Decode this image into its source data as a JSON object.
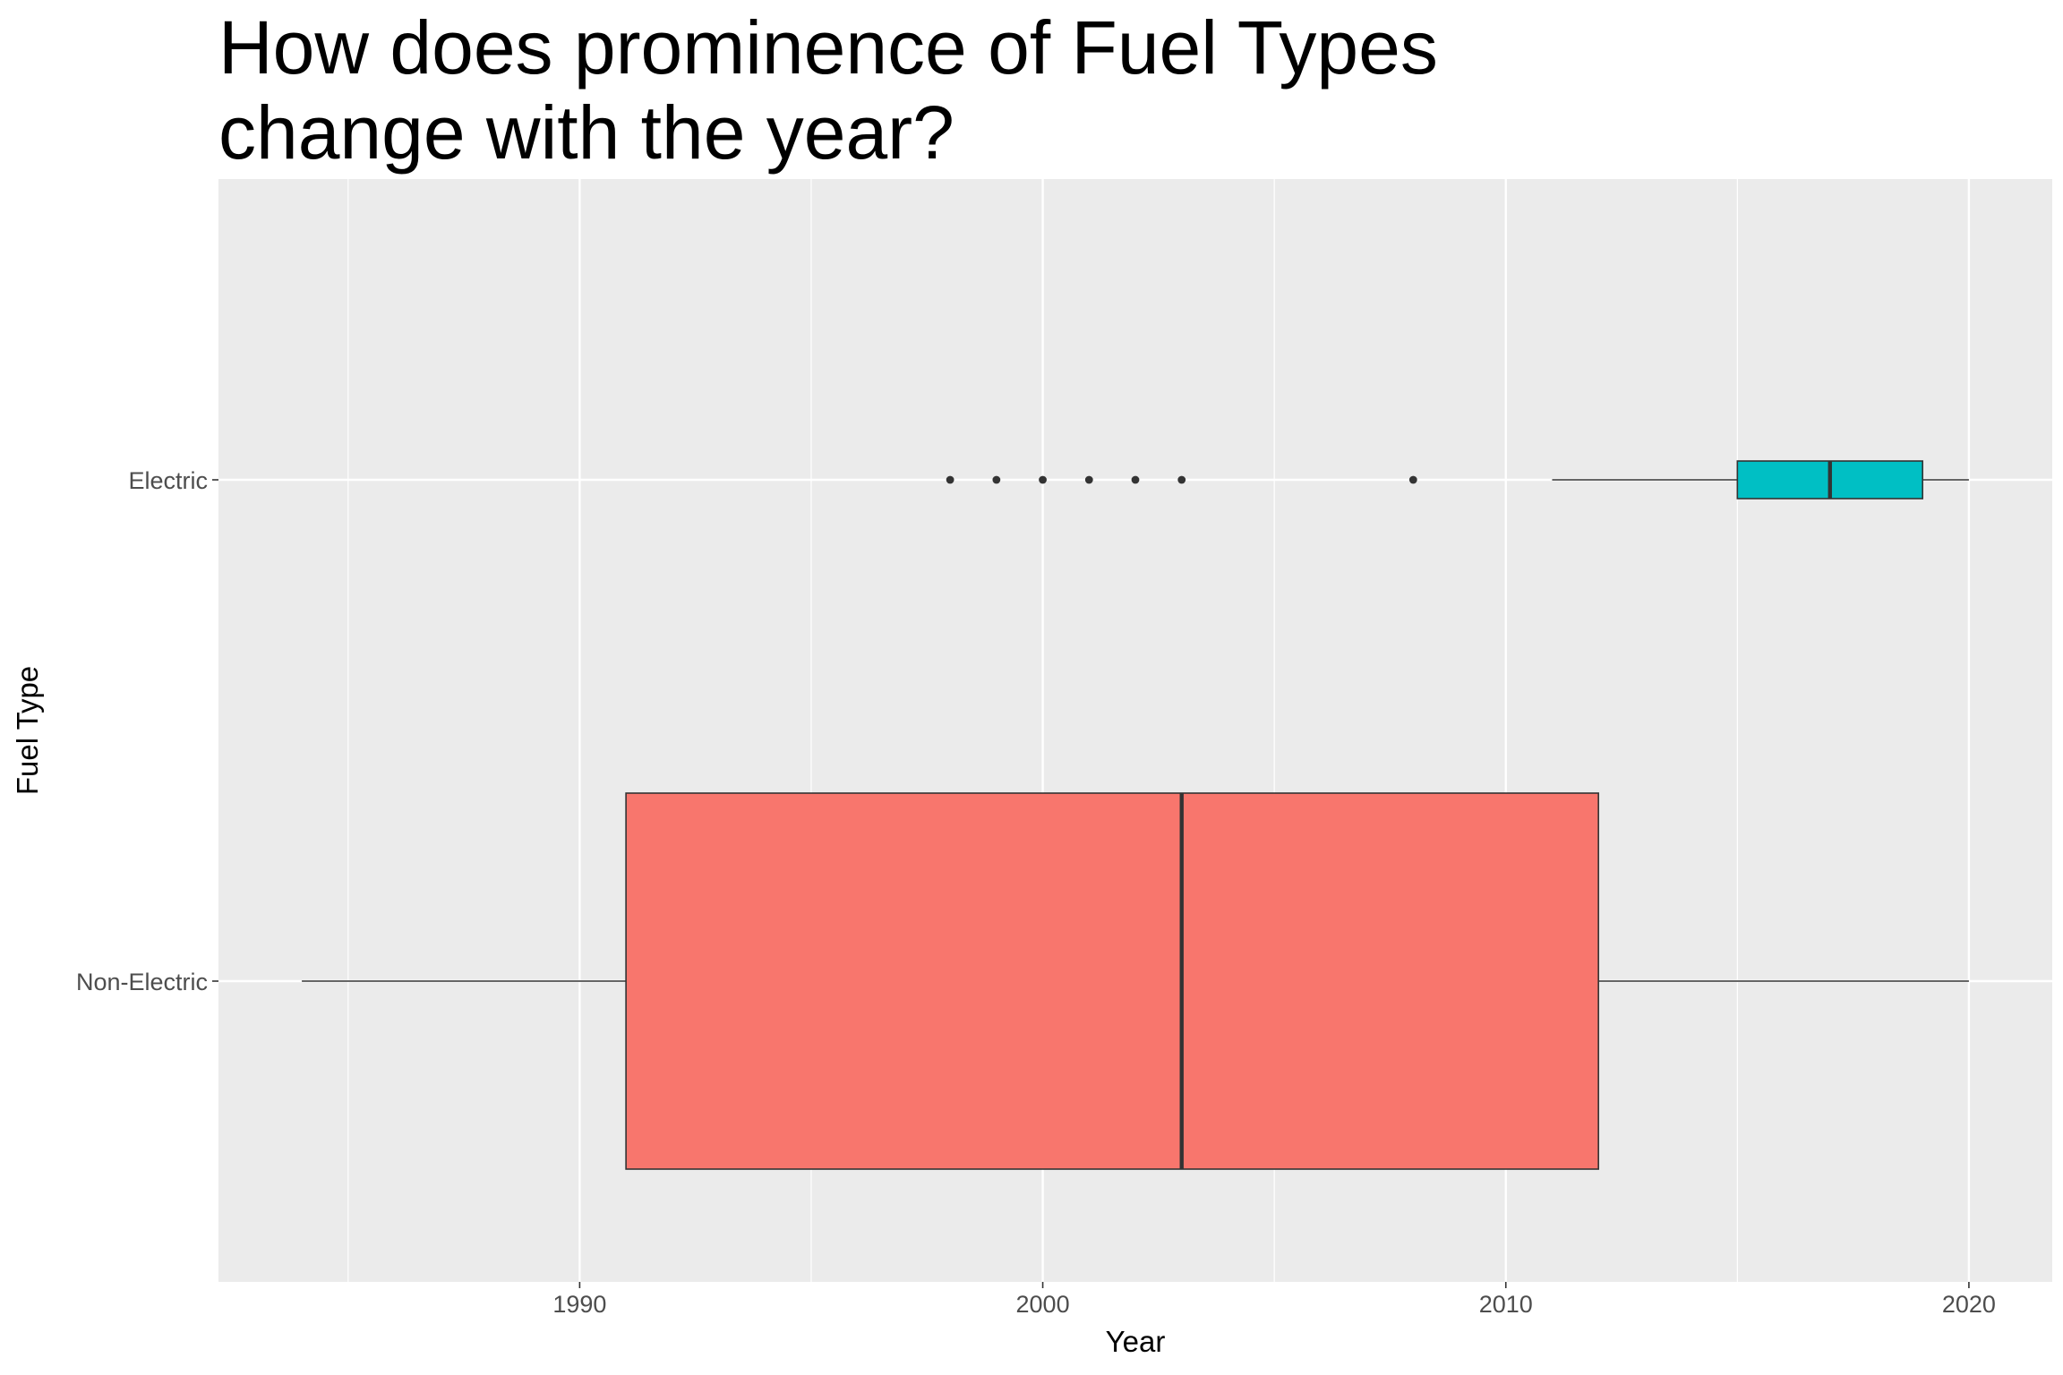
{
  "chart_data": {
    "type": "boxplot",
    "orientation": "horizontal",
    "title_lines": [
      "How does prominence of Fuel Types",
      "change with the year?"
    ],
    "xlabel": "Year",
    "ylabel": "Fuel Type",
    "xlim": [
      1982.2,
      2021.8
    ],
    "x_ticks": [
      1990,
      2000,
      2010,
      2020
    ],
    "categories": [
      "Non-Electric",
      "Electric"
    ],
    "grid": true,
    "legend": "none",
    "colors": {
      "panel": "#ebebeb",
      "grid": "#ffffff",
      "outline": "#333333",
      "axis_text": "#4d4d4d"
    },
    "boxes": [
      {
        "category": "Non-Electric",
        "whisker_low": 1984,
        "q1": 1991,
        "median": 2003,
        "q3": 2012,
        "whisker_high": 2020,
        "outliers": [],
        "fill": "#f8766d",
        "relative_width": 0.75
      },
      {
        "category": "Electric",
        "whisker_low": 2011,
        "q1": 2015,
        "median": 2017,
        "q3": 2019,
        "whisker_high": 2020,
        "outliers": [
          1998,
          1999,
          2000,
          2001,
          2002,
          2003,
          2008
        ],
        "fill": "#00bfc4",
        "relative_width": 0.075
      }
    ]
  }
}
